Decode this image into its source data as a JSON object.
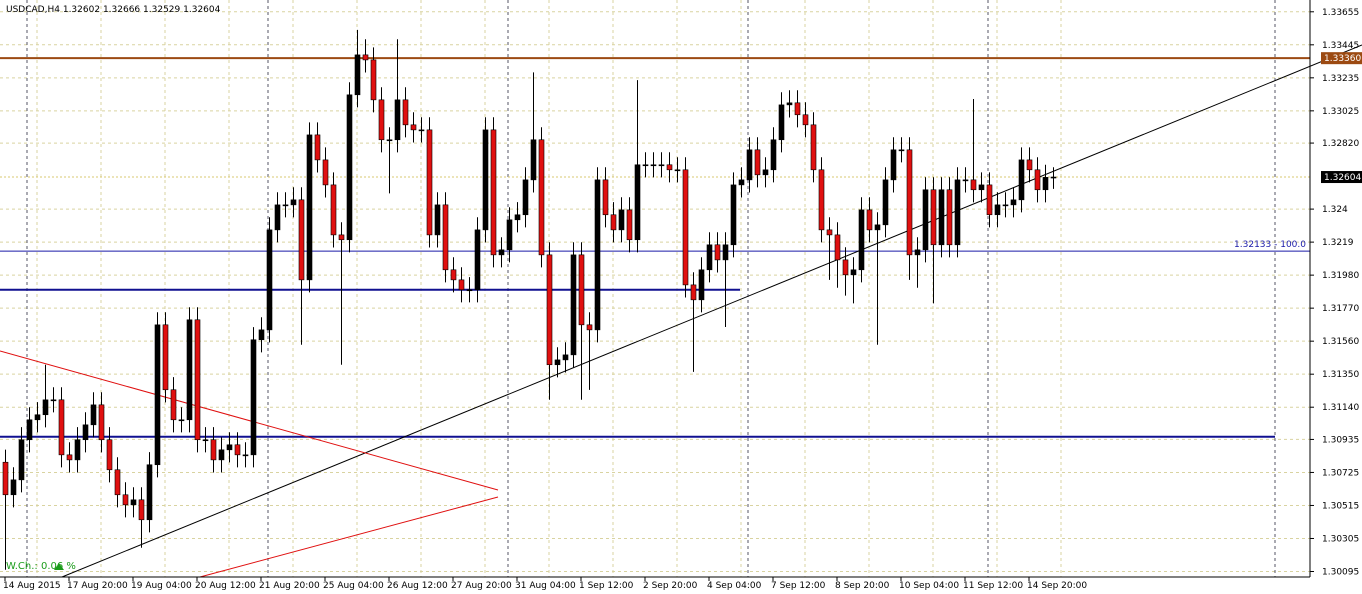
{
  "chart_data": {
    "type": "candlestick",
    "title": "USDCAD,H4",
    "indicator": "W.Ch.: 0.06 %",
    "up_color": "#000000",
    "down_color": "#e01010",
    "grid": true,
    "categories": [
      "14 Aug 2015",
      null,
      null,
      null,
      null,
      null,
      null,
      null,
      "17 Aug 20:00",
      null,
      null,
      null,
      null,
      null,
      null,
      null,
      "19 Aug 04:00",
      null,
      null,
      null,
      null,
      null,
      null,
      null,
      "20 Aug 12:00",
      null,
      null,
      null,
      null,
      null,
      null,
      null,
      "21 Aug 20:00",
      null,
      null,
      null,
      null,
      null,
      null,
      null,
      "25 Aug 04:00",
      null,
      null,
      null,
      null,
      null,
      null,
      null,
      "26 Aug 12:00",
      null,
      null,
      null,
      null,
      null,
      null,
      null,
      "27 Aug 20:00",
      null,
      null,
      null,
      null,
      null,
      null,
      null,
      "31 Aug 04:00",
      null,
      null,
      null,
      null,
      null,
      null,
      null,
      "1 Sep 12:00",
      null,
      null,
      null,
      null,
      null,
      null,
      null,
      "2 Sep 20:00",
      null,
      null,
      null,
      null,
      null,
      null,
      null,
      "4 Sep 04:00",
      null,
      null,
      null,
      null,
      null,
      null,
      null,
      "7 Sep 12:00",
      null,
      null,
      null,
      null,
      null,
      null,
      null,
      "8 Sep 20:00",
      null,
      null,
      null,
      null,
      null,
      null,
      null,
      "10 Sep 04:00",
      null,
      null,
      null,
      null,
      null,
      null,
      null,
      "11 Sep 12:00",
      null,
      null,
      null,
      null,
      null,
      null,
      null,
      "14 Sep 20:00",
      null,
      null,
      null
    ],
    "open": [
      1.3079,
      1.30583,
      1.30678,
      1.30933,
      1.3106,
      1.31092,
      1.31187,
      1.31187,
      1.30837,
      1.30805,
      1.30933,
      1.31028,
      1.31155,
      1.30933,
      1.30742,
      1.30583,
      1.30519,
      1.30551,
      1.30424,
      1.30774,
      1.31664,
      1.31251,
      1.3106,
      1.3106,
      1.31696,
      1.30933,
      1.30933,
      1.30805,
      1.30869,
      1.30901,
      1.30837,
      1.30837,
      1.31569,
      1.31632,
      1.32268,
      1.32427,
      1.32427,
      1.32459,
      1.3195,
      1.32872,
      1.32713,
      1.32554,
      1.32236,
      1.32205,
      1.33127,
      1.33381,
      1.33349,
      1.33095,
      1.32841,
      1.32841,
      1.33095,
      1.32936,
      1.32904,
      1.32904,
      1.32236,
      1.32427,
      1.32014,
      1.3195,
      1.31887,
      1.31887,
      1.32268,
      1.32904,
      1.32109,
      1.32141,
      1.32332,
      1.32364,
      1.32586,
      1.32841,
      1.32109,
      1.3141,
      1.31441,
      1.31473,
      1.32109,
      1.31664,
      1.31632,
      1.32586,
      1.32364,
      1.32268,
      1.32395,
      1.32205,
      1.32682,
      1.32682,
      1.32682,
      1.32682,
      1.3265,
      1.3265,
      1.31918,
      1.31823,
      1.32014,
      1.32173,
      1.32077,
      1.32173,
      1.32554,
      1.32586,
      1.32777,
      1.32618,
      1.3265,
      1.32841,
      1.33063,
      1.33076,
      1.33,
      1.32936,
      1.3265,
      1.32268,
      1.32236,
      1.32077,
      1.31982,
      1.32014,
      1.32395,
      1.32268,
      1.323,
      1.32586,
      1.32777,
      1.32777,
      1.32109,
      1.32141,
      1.32523,
      1.32173,
      1.32523,
      1.32173,
      1.32586,
      1.32586,
      1.32523,
      1.32554,
      1.32364,
      1.32427,
      1.32427,
      1.32459,
      1.32713,
      1.3265,
      1.32523,
      1.32602
    ],
    "high": [
      1.3087,
      1.30758,
      1.31013,
      1.3114,
      1.31172,
      1.3141,
      1.31267,
      1.31267,
      1.30917,
      1.31013,
      1.31108,
      1.31235,
      1.31235,
      1.31013,
      1.30822,
      1.30663,
      1.30631,
      1.30631,
      1.30854,
      1.31744,
      1.31744,
      1.31331,
      1.3114,
      1.31776,
      1.31776,
      1.31013,
      1.31013,
      1.30949,
      1.30981,
      1.30981,
      1.30917,
      1.31649,
      1.31712,
      1.32348,
      1.32507,
      1.32507,
      1.32539,
      1.32539,
      1.32952,
      1.32952,
      1.32793,
      1.32634,
      1.32316,
      1.33207,
      1.3354,
      1.3348,
      1.33429,
      1.33175,
      1.32921,
      1.3348,
      1.33175,
      1.33016,
      1.32984,
      1.32984,
      1.32507,
      1.32507,
      1.32094,
      1.3203,
      1.31967,
      1.32348,
      1.32984,
      1.32984,
      1.32221,
      1.32412,
      1.32444,
      1.32666,
      1.3327,
      1.32921,
      1.32189,
      1.31521,
      1.31553,
      1.32189,
      1.32189,
      1.31744,
      1.32666,
      1.32666,
      1.32444,
      1.32475,
      1.32475,
      1.3322,
      1.32762,
      1.32762,
      1.32762,
      1.32762,
      1.3273,
      1.3273,
      1.31998,
      1.32094,
      1.32253,
      1.32253,
      1.32253,
      1.32634,
      1.32666,
      1.32857,
      1.32857,
      1.3273,
      1.32921,
      1.33143,
      1.33156,
      1.33156,
      1.3308,
      1.33016,
      1.3273,
      1.32348,
      1.32316,
      1.32157,
      1.32094,
      1.32475,
      1.32475,
      1.3238,
      1.32666,
      1.32857,
      1.32857,
      1.32857,
      1.32221,
      1.32603,
      1.32603,
      1.32603,
      1.32603,
      1.32666,
      1.32666,
      1.331,
      1.32634,
      1.32634,
      1.32507,
      1.32507,
      1.32539,
      1.32793,
      1.32793,
      1.3273,
      1.32682,
      1.32666
    ],
    "low": [
      1.30106,
      1.30503,
      1.30598,
      1.30853,
      1.3098,
      1.31012,
      1.31107,
      1.30757,
      1.30725,
      1.30725,
      1.30853,
      1.30948,
      1.30853,
      1.30662,
      1.30503,
      1.30439,
      1.30439,
      1.30246,
      1.30344,
      1.30694,
      1.31171,
      1.3098,
      1.3098,
      1.3098,
      1.30853,
      1.30853,
      1.30725,
      1.30725,
      1.30789,
      1.30757,
      1.30757,
      1.30757,
      1.31489,
      1.31552,
      1.32188,
      1.32347,
      1.32347,
      1.31537,
      1.3187,
      1.32633,
      1.32474,
      1.32156,
      1.3141,
      1.32125,
      1.33047,
      1.33269,
      1.33015,
      1.32761,
      1.325,
      1.32761,
      1.32856,
      1.32824,
      1.32824,
      1.32156,
      1.32156,
      1.31934,
      1.3187,
      1.31807,
      1.31807,
      1.31807,
      1.32188,
      1.32029,
      1.32029,
      1.32061,
      1.32252,
      1.32284,
      1.32506,
      1.32029,
      1.31187,
      1.3133,
      1.31361,
      1.31393,
      1.31187,
      1.3125,
      1.31552,
      1.32284,
      1.32188,
      1.32188,
      1.32125,
      1.32125,
      1.32602,
      1.32602,
      1.32602,
      1.3257,
      1.3257,
      1.31838,
      1.31365,
      1.31743,
      1.31934,
      1.31997,
      1.3165,
      1.32093,
      1.32474,
      1.32506,
      1.32538,
      1.32538,
      1.3257,
      1.32761,
      1.32983,
      1.3292,
      1.32856,
      1.3257,
      1.32188,
      1.3195,
      1.319,
      1.3185,
      1.318,
      1.31934,
      1.32188,
      1.31537,
      1.3222,
      1.32506,
      1.32697,
      1.3195,
      1.319,
      1.32061,
      1.318,
      1.32093,
      1.32093,
      1.32093,
      1.32506,
      1.32443,
      1.32443,
      1.32284,
      1.32284,
      1.32347,
      1.32347,
      1.32379,
      1.3257,
      1.32443,
      1.32443,
      1.32529
    ],
    "close": [
      1.30583,
      1.30678,
      1.30933,
      1.3106,
      1.31092,
      1.31187,
      1.31187,
      1.30837,
      1.30805,
      1.30933,
      1.31028,
      1.31155,
      1.30933,
      1.30742,
      1.30583,
      1.30519,
      1.30551,
      1.30424,
      1.30774,
      1.31664,
      1.31251,
      1.3106,
      1.3106,
      1.31696,
      1.30933,
      1.30933,
      1.30805,
      1.30869,
      1.30901,
      1.30837,
      1.30837,
      1.31569,
      1.31632,
      1.32268,
      1.32427,
      1.32427,
      1.32459,
      1.3195,
      1.32872,
      1.32713,
      1.32554,
      1.32236,
      1.32205,
      1.33127,
      1.33381,
      1.33349,
      1.33095,
      1.32841,
      1.32841,
      1.33095,
      1.32936,
      1.32904,
      1.32904,
      1.32236,
      1.32427,
      1.32014,
      1.3195,
      1.31887,
      1.31887,
      1.32268,
      1.32904,
      1.32109,
      1.32141,
      1.32332,
      1.32364,
      1.32586,
      1.32841,
      1.32109,
      1.3141,
      1.31441,
      1.31473,
      1.32109,
      1.31664,
      1.31632,
      1.32586,
      1.32364,
      1.32268,
      1.32395,
      1.32205,
      1.32682,
      1.32682,
      1.32682,
      1.32682,
      1.3265,
      1.3265,
      1.31918,
      1.31823,
      1.32014,
      1.32173,
      1.32077,
      1.32173,
      1.32554,
      1.32586,
      1.32777,
      1.32618,
      1.3265,
      1.32841,
      1.33063,
      1.33076,
      1.33,
      1.32936,
      1.3265,
      1.32268,
      1.32236,
      1.32077,
      1.31982,
      1.32014,
      1.32395,
      1.32268,
      1.323,
      1.32586,
      1.32777,
      1.32777,
      1.32109,
      1.32141,
      1.32523,
      1.32173,
      1.32523,
      1.32173,
      1.32586,
      1.32586,
      1.32523,
      1.32554,
      1.32364,
      1.32427,
      1.32427,
      1.32459,
      1.32713,
      1.3265,
      1.32523,
      1.32602,
      1.32604
    ],
    "ylim": [
      1.3006,
      1.3373
    ],
    "yticks": [
      1.33655,
      1.33445,
      1.33235,
      1.33025,
      {
        "value": 1.3282,
        "label": "1.32820"
      },
      1.324,
      1.3219,
      {
        "value": 1.3198,
        "label": "1.31980"
      },
      {
        "value": 1.3177,
        "label": "1.31770"
      },
      {
        "value": 1.3156,
        "label": "1.31560"
      },
      {
        "value": 1.3135,
        "label": "1.31350"
      },
      {
        "value": 1.3114,
        "label": "1.31140"
      },
      1.30935,
      1.30725,
      1.30515,
      1.30305,
      1.30095
    ],
    "hlines": [
      {
        "value": 1.3336,
        "label": "1.33360",
        "color": "#9c4a12",
        "width": 2
      },
      {
        "value": 1.32133,
        "label": "1.32133 - 100.0",
        "color": "#1a1aa8",
        "width": 1
      },
      {
        "value": 1.31887,
        "color": "#101090",
        "width": 2
      },
      {
        "value": 1.30952,
        "color": "#101090",
        "width": 2
      }
    ]
  }
}
